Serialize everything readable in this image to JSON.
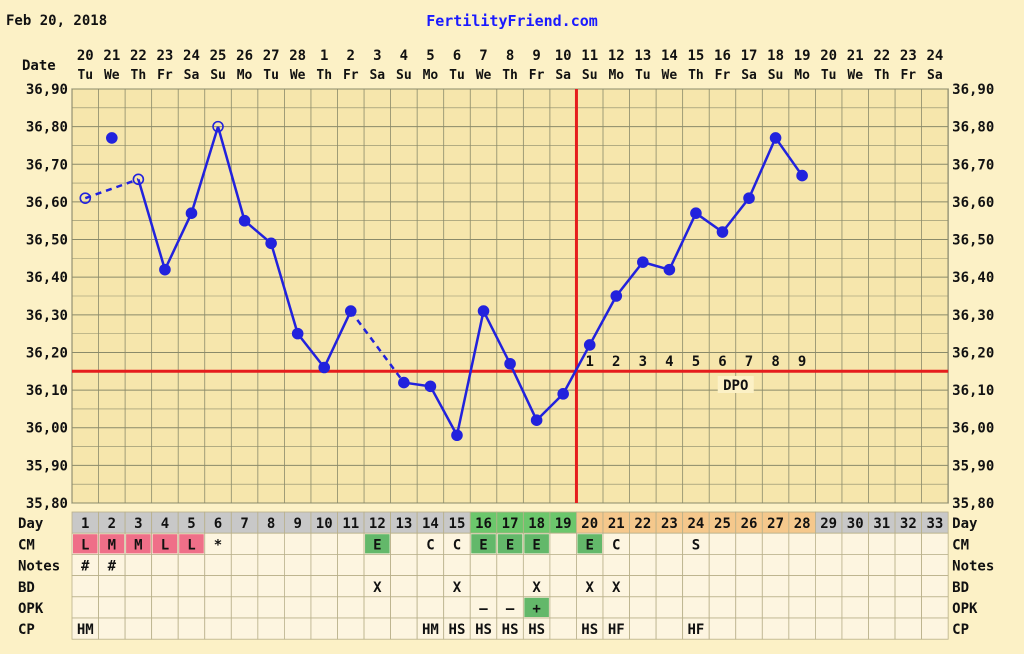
{
  "header": {
    "start_date": "Feb 20, 2018",
    "site": "FertilityFriend.com"
  },
  "labels": {
    "date": "Date",
    "day": "Day",
    "cm": "CM",
    "notes": "Notes",
    "bd": "BD",
    "opk": "OPK",
    "cp": "CP",
    "dpo": "DPO"
  },
  "calendar": {
    "dates": [
      "20",
      "21",
      "22",
      "23",
      "24",
      "25",
      "26",
      "27",
      "28",
      "1",
      "2",
      "3",
      "4",
      "5",
      "6",
      "7",
      "8",
      "9",
      "10",
      "11",
      "12",
      "13",
      "14",
      "15",
      "16",
      "17",
      "18",
      "19",
      "20",
      "21",
      "22",
      "23",
      "24"
    ],
    "weekdays": [
      "Tu",
      "We",
      "Th",
      "Fr",
      "Sa",
      "Su",
      "Mo",
      "Tu",
      "We",
      "Th",
      "Fr",
      "Sa",
      "Su",
      "Mo",
      "Tu",
      "We",
      "Th",
      "Fr",
      "Sa",
      "Su",
      "Mo",
      "Tu",
      "We",
      "Th",
      "Fr",
      "Sa",
      "Su",
      "Mo",
      "Tu",
      "We",
      "Th",
      "Fr",
      "Sa"
    ],
    "cycle_days": [
      "1",
      "2",
      "3",
      "4",
      "5",
      "6",
      "7",
      "8",
      "9",
      "10",
      "11",
      "12",
      "13",
      "14",
      "15",
      "16",
      "17",
      "18",
      "19",
      "20",
      "21",
      "22",
      "23",
      "24",
      "25",
      "26",
      "27",
      "28",
      "29",
      "30",
      "31",
      "32",
      "33"
    ]
  },
  "chart_data": {
    "type": "line",
    "ylim": [
      35.8,
      36.9
    ],
    "yticks": [
      "35,80",
      "35,90",
      "36,00",
      "36,10",
      "36,20",
      "36,30",
      "36,40",
      "36,50",
      "36,60",
      "36,70",
      "36,80",
      "36,90"
    ],
    "temps": [
      36.61,
      36.77,
      36.66,
      36.42,
      36.57,
      36.8,
      36.55,
      36.49,
      36.25,
      36.16,
      36.31,
      null,
      36.12,
      36.11,
      35.98,
      36.31,
      36.17,
      36.02,
      36.09,
      36.22,
      36.35,
      36.44,
      36.42,
      36.57,
      36.52,
      36.61,
      36.77,
      36.67
    ],
    "discarded_days": [
      1,
      3,
      6
    ],
    "excluded_days": [
      2
    ],
    "dashed_segments": [
      [
        1,
        3
      ],
      [
        11,
        13
      ]
    ],
    "coverline": 36.15,
    "ovulation_day": 19,
    "dpo_labels": [
      "1",
      "2",
      "3",
      "4",
      "5",
      "6",
      "7",
      "8",
      "9"
    ],
    "dpo_start_day": 20,
    "colors": {
      "line": "#2222dd",
      "coverline": "#e51d1d",
      "grid": "#8a8a6a",
      "plot_bg": "#f6e6ac",
      "chart_bg": "#fcf1c6"
    }
  },
  "rows": {
    "cm": [
      {
        "day": 1,
        "text": "L",
        "color": "#ef6f88"
      },
      {
        "day": 2,
        "text": "M",
        "color": "#ef6f88"
      },
      {
        "day": 3,
        "text": "M",
        "color": "#ef6f88"
      },
      {
        "day": 4,
        "text": "L",
        "color": "#ef6f88"
      },
      {
        "day": 5,
        "text": "L",
        "color": "#ef6f88"
      },
      {
        "day": 6,
        "text": "*"
      },
      {
        "day": 12,
        "text": "E",
        "color": "#63b86a"
      },
      {
        "day": 14,
        "text": "C"
      },
      {
        "day": 15,
        "text": "C"
      },
      {
        "day": 16,
        "text": "E",
        "color": "#63b86a"
      },
      {
        "day": 17,
        "text": "E",
        "color": "#63b86a"
      },
      {
        "day": 18,
        "text": "E",
        "color": "#63b86a"
      },
      {
        "day": 20,
        "text": "E",
        "color": "#63b86a"
      },
      {
        "day": 21,
        "text": "C"
      },
      {
        "day": 24,
        "text": "S"
      }
    ],
    "notes": [
      {
        "day": 1,
        "text": "#"
      },
      {
        "day": 2,
        "text": "#"
      }
    ],
    "bd": [
      {
        "day": 12,
        "text": "X"
      },
      {
        "day": 15,
        "text": "X"
      },
      {
        "day": 18,
        "text": "X"
      },
      {
        "day": 20,
        "text": "X"
      },
      {
        "day": 21,
        "text": "X"
      }
    ],
    "opk": [
      {
        "day": 16,
        "text": "–"
      },
      {
        "day": 17,
        "text": "–"
      },
      {
        "day": 18,
        "text": "+",
        "color": "#63b86a"
      }
    ],
    "cp": [
      {
        "day": 1,
        "text": "HM"
      },
      {
        "day": 14,
        "text": "HM"
      },
      {
        "day": 15,
        "text": "HS"
      },
      {
        "day": 16,
        "text": "HS"
      },
      {
        "day": 17,
        "text": "HS"
      },
      {
        "day": 18,
        "text": "HS"
      },
      {
        "day": 20,
        "text": "HS"
      },
      {
        "day": 21,
        "text": "HF"
      },
      {
        "day": 24,
        "text": "HF"
      }
    ]
  },
  "day_colors": {
    "fertile": "#6cc76c",
    "luteal": "#f5c88c",
    "default": "#c8c8c8",
    "fertile_days": [
      16,
      17,
      18,
      19
    ],
    "luteal_days": [
      20,
      21,
      22,
      23,
      24,
      25,
      26,
      27,
      28
    ]
  }
}
